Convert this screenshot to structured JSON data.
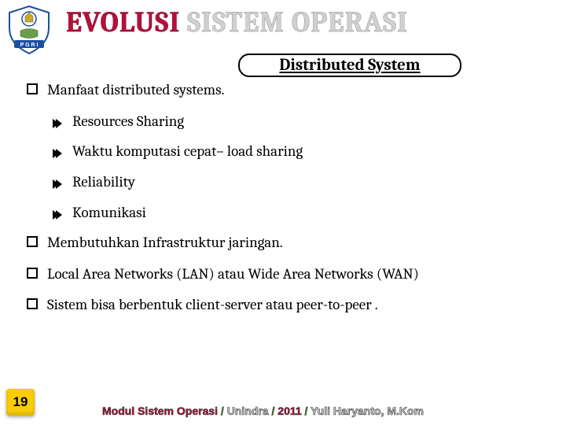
{
  "title": {
    "text": "EVOLUSI SISTEM OPERASI",
    "color_a": "#b70f3a",
    "color_b": "#d0d0d0"
  },
  "subtitle": "Distributed  System",
  "bullets": [
    {
      "level": 0,
      "text": "Manfaat distributed systems."
    },
    {
      "level": 1,
      "text": "Resources Sharing"
    },
    {
      "level": 1,
      "text": "Waktu komputasi cepat– load sharing"
    },
    {
      "level": 1,
      "text": "Reliability"
    },
    {
      "level": 1,
      "text": "Komunikasi"
    },
    {
      "level": 0,
      "text": "Membutuhkan Infrastruktur jaringan."
    },
    {
      "level": 0,
      "text": "Local Area Networks (LAN) atau Wide Area Networks (WAN)"
    },
    {
      "level": 0,
      "text": "Sistem bisa berbentuk client-server atau peer-to-peer ."
    }
  ],
  "page_number": "19",
  "footer": {
    "parts": [
      {
        "text": "Modul Sistem Operasi",
        "color": "#b70f3a"
      },
      {
        "text": " / ",
        "color": "#4e8d3b"
      },
      {
        "text": "Unindra",
        "color": "#d0d0d0"
      },
      {
        "text": " / ",
        "color": "#4e8d3b"
      },
      {
        "text": "2011",
        "color": "#b70f3a"
      },
      {
        "text": " / ",
        "color": "#4e8d3b"
      },
      {
        "text": "Yuli Haryanto, M.Kom",
        "color": "#d0d0d0"
      }
    ]
  },
  "logo": {
    "shield_fill": "#ffffff",
    "shield_stroke": "#1a4fa3",
    "banner_fill": "#1a4fa3",
    "banner_text_color": "#ffffff",
    "banner_text": "P G R I"
  }
}
